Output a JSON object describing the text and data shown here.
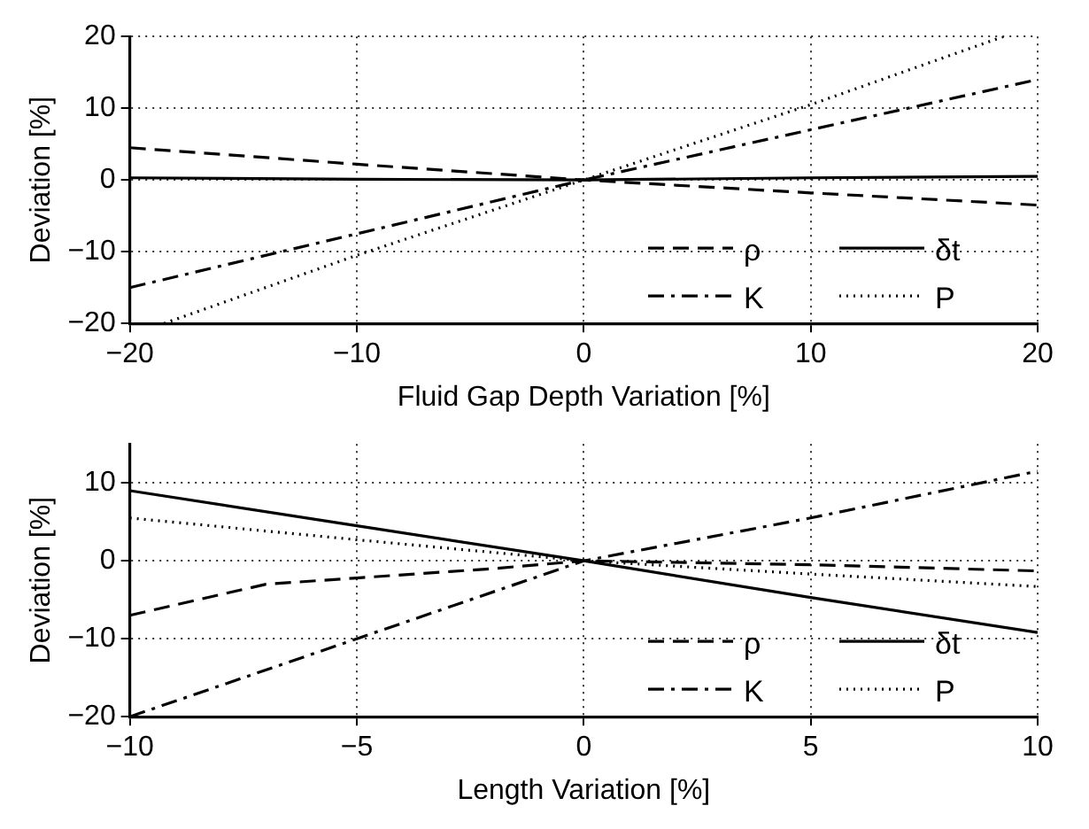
{
  "chart_data": [
    {
      "type": "line",
      "xlabel": "Fluid Gap Depth Variation [%]",
      "ylabel": "Deviation [%]",
      "xlim": [
        -20,
        20
      ],
      "xticks": [
        -20,
        -10,
        0,
        10,
        20
      ],
      "ylim": [
        -20,
        20
      ],
      "yticks": [
        -20,
        -10,
        0,
        10,
        20
      ],
      "grid": true,
      "legend": "bottom right",
      "marker": "none",
      "series": [
        {
          "name": "ρ",
          "color": "#000000",
          "line_style": "dashed",
          "x": [
            -20,
            -10,
            0,
            10,
            20
          ],
          "values": [
            4.5,
            2.2,
            0,
            -1.8,
            -3.5
          ]
        },
        {
          "name": "K",
          "color": "#000000",
          "line_style": "dashdot",
          "x": [
            -20,
            -10,
            0,
            10,
            20
          ],
          "values": [
            -15,
            -7.5,
            0,
            7,
            14
          ]
        },
        {
          "name": "δt",
          "color": "#000000",
          "line_style": "solid",
          "x": [
            -20,
            -10,
            0,
            10,
            20
          ],
          "values": [
            0.3,
            0.1,
            0,
            0.3,
            0.5
          ]
        },
        {
          "name": "P",
          "color": "#000000",
          "line_style": "dotted",
          "x": [
            -18.5,
            -10,
            0,
            10,
            18.5
          ],
          "values": [
            -20,
            -10.5,
            0,
            10.5,
            20
          ]
        }
      ]
    },
    {
      "type": "line",
      "xlabel": "Length Variation [%]",
      "ylabel": "Deviation [%]",
      "xlim": [
        -10,
        10
      ],
      "xticks": [
        -10,
        -5,
        0,
        5,
        10
      ],
      "ylim": [
        -20,
        15
      ],
      "yticks": [
        -20,
        -10,
        0,
        10
      ],
      "grid": true,
      "legend": "bottom right",
      "marker": "none",
      "series": [
        {
          "name": "ρ",
          "color": "#000000",
          "line_style": "dashed",
          "x": [
            -10,
            -7,
            -5,
            -2,
            0,
            5,
            10
          ],
          "values": [
            -7,
            -3,
            -2.2,
            -1,
            0,
            -0.5,
            -1.3
          ]
        },
        {
          "name": "K",
          "color": "#000000",
          "line_style": "dashdot",
          "x": [
            -10,
            -5,
            0,
            5,
            10
          ],
          "values": [
            -20,
            -10,
            0,
            5.5,
            11.5
          ]
        },
        {
          "name": "δt",
          "color": "#000000",
          "line_style": "solid",
          "x": [
            -10,
            -5,
            0,
            5,
            10
          ],
          "values": [
            9,
            4.5,
            0,
            -4.7,
            -9.2
          ]
        },
        {
          "name": "P",
          "color": "#000000",
          "line_style": "dotted",
          "x": [
            -10,
            -5,
            0,
            5,
            10
          ],
          "values": [
            5.5,
            2.7,
            0,
            -1.7,
            -3.3
          ]
        }
      ]
    }
  ]
}
